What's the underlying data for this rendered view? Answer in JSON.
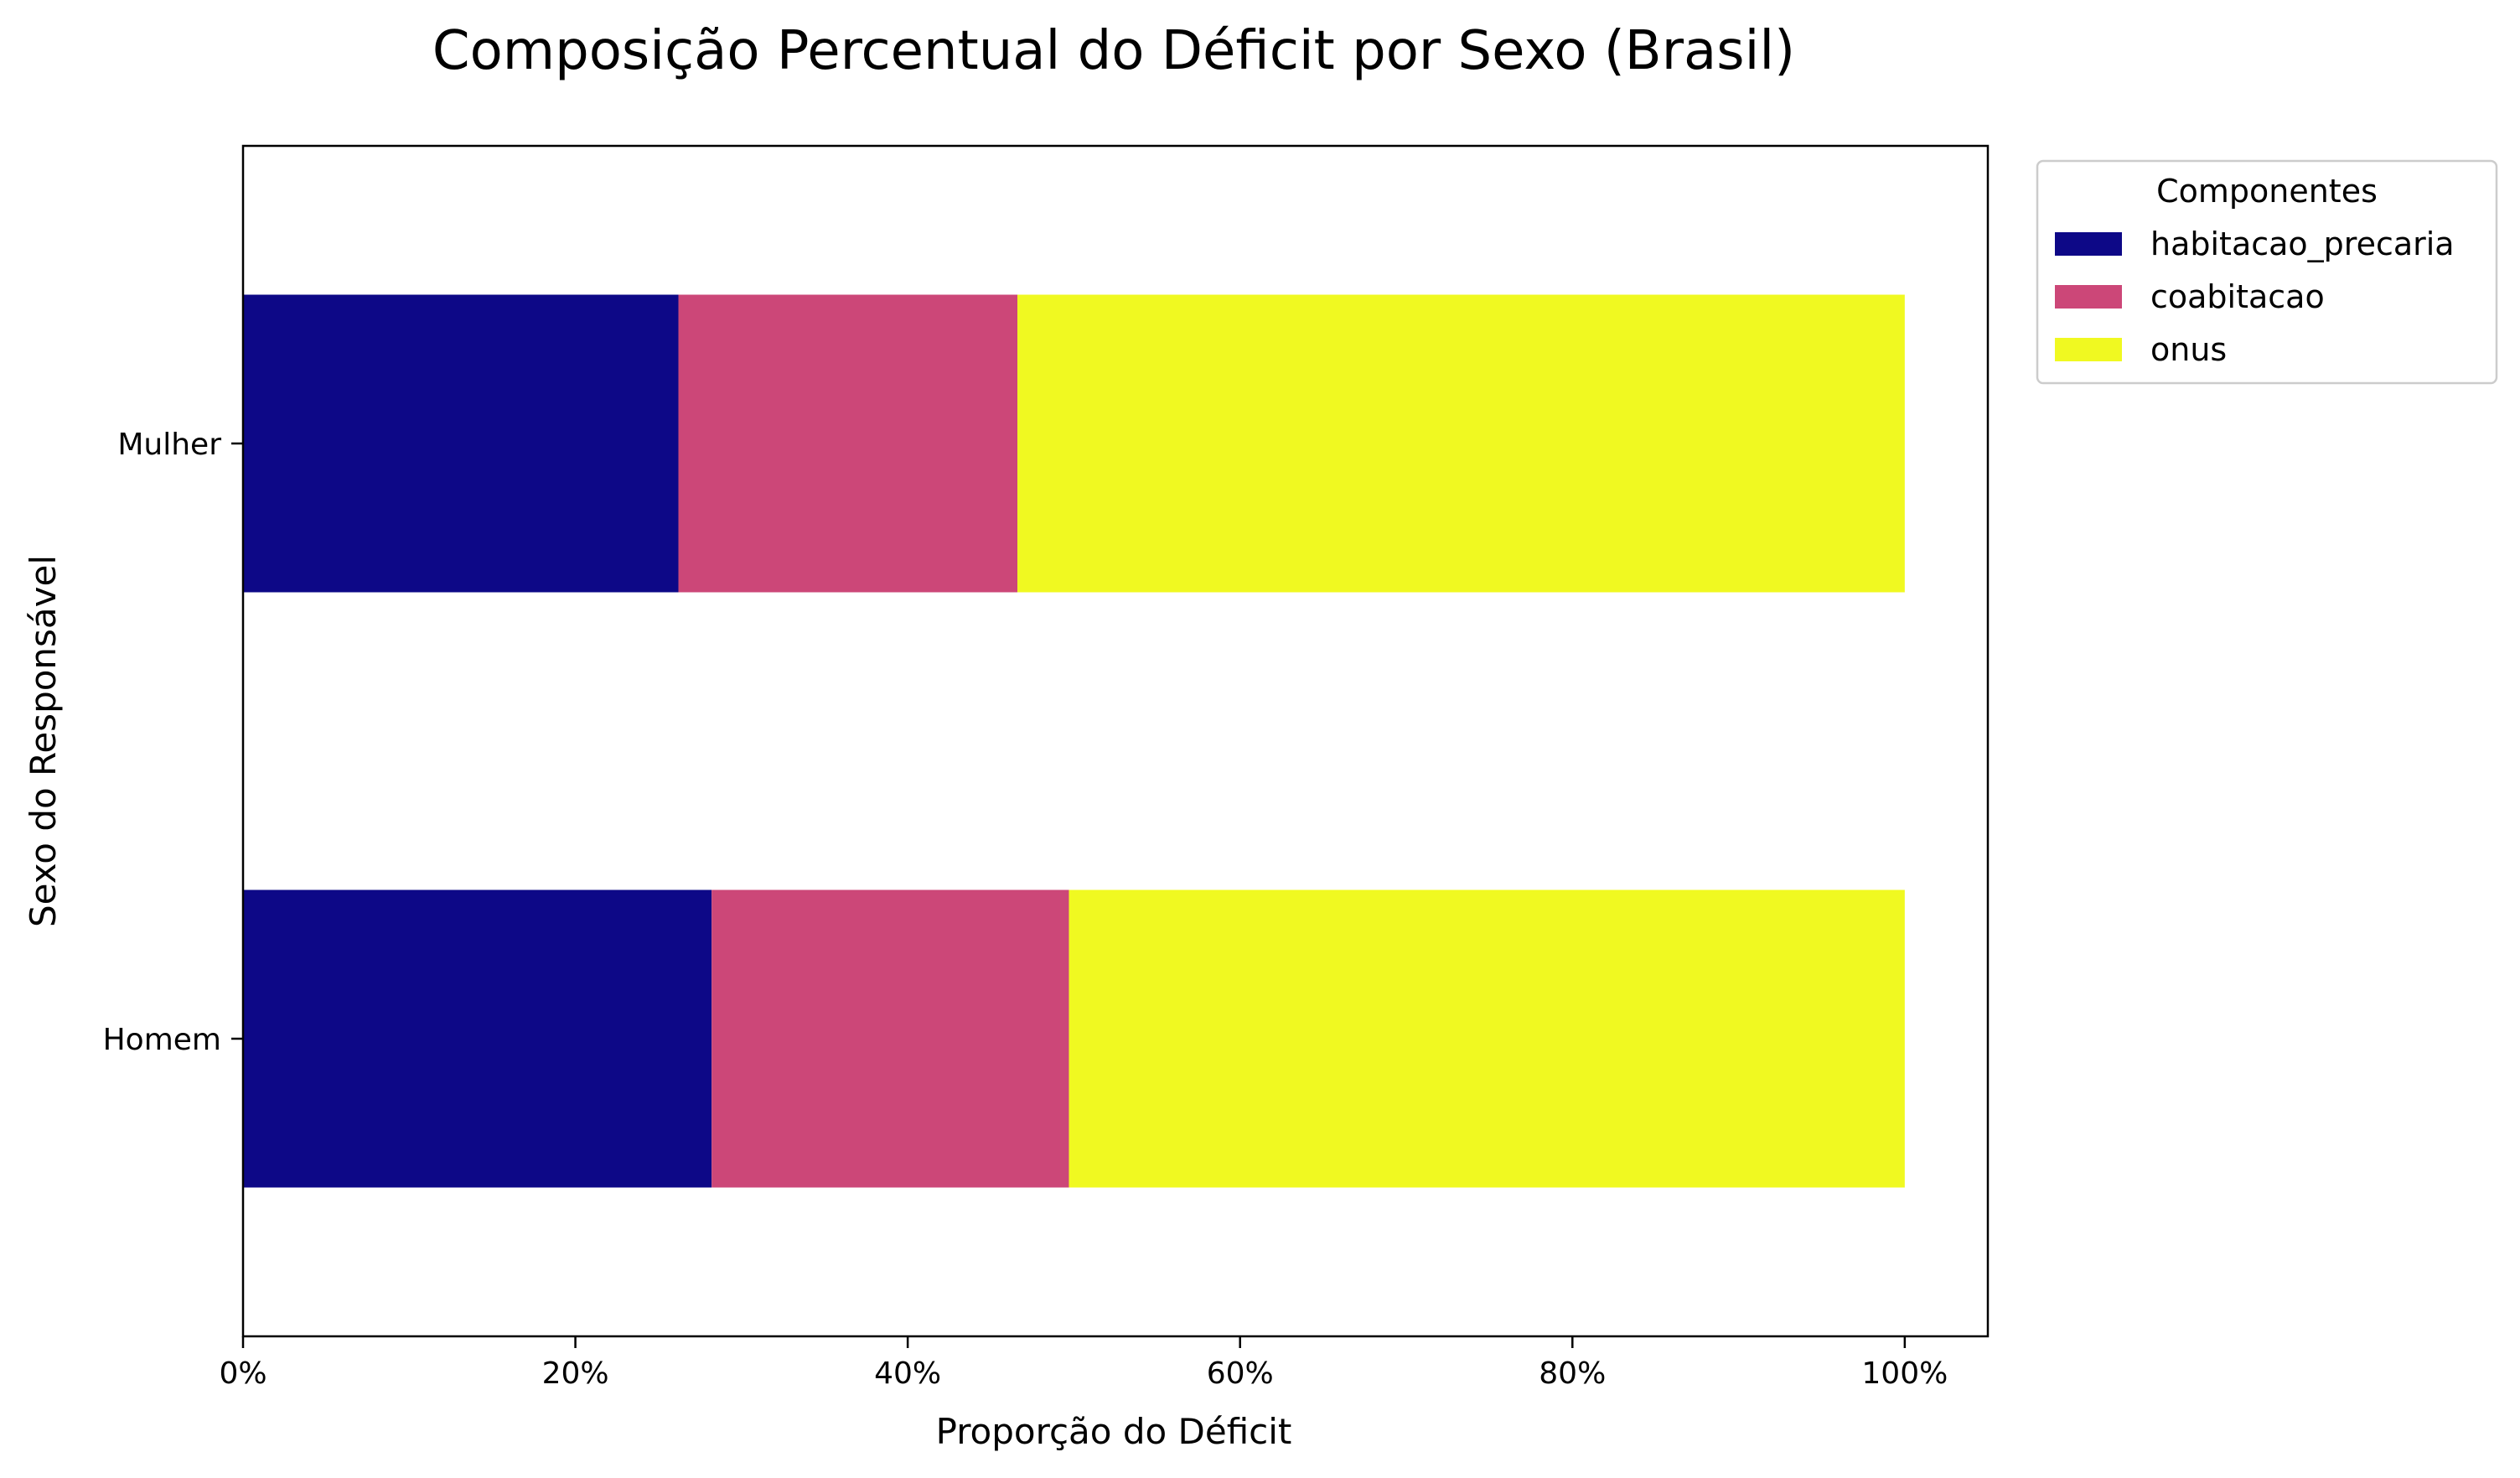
{
  "chart_data": {
    "type": "bar",
    "orientation": "horizontal",
    "stacked": true,
    "title": "Composição Percentual do Déficit por Sexo (Brasil)",
    "xlabel": "Proporção do Déficit",
    "ylabel": "Sexo do Responsável",
    "xlim": [
      0,
      1.05
    ],
    "xticks": [
      0,
      0.2,
      0.4,
      0.6,
      0.8,
      1.0
    ],
    "xtick_labels": [
      "0%",
      "20%",
      "40%",
      "60%",
      "80%",
      "100%"
    ],
    "categories": [
      "Homem",
      "Mulher"
    ],
    "grid": false,
    "legend": {
      "title": "Componentes",
      "placement": "outside-top-right"
    },
    "series": [
      {
        "name": "habitacao_precaria",
        "color": "#0d0887",
        "values": [
          0.282,
          0.262
        ]
      },
      {
        "name": "coabitacao",
        "color": "#cc4778",
        "values": [
          0.215,
          0.204
        ]
      },
      {
        "name": "onus",
        "color": "#f0f921",
        "values": [
          0.503,
          0.534
        ]
      }
    ]
  }
}
